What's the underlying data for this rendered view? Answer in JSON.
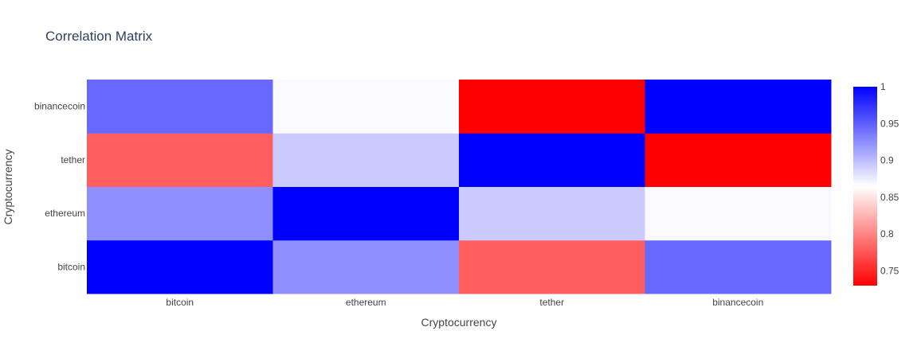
{
  "chart_data": {
    "type": "heatmap",
    "title": "Correlation Matrix",
    "xlabel": "Cryptocurrency",
    "ylabel": "Cryptocurrency",
    "x": [
      "bitcoin",
      "ethereum",
      "tether",
      "binancecoin"
    ],
    "y": [
      "bitcoin",
      "ethereum",
      "tether",
      "binancecoin"
    ],
    "z": [
      [
        1.0,
        0.925,
        0.78,
        0.945
      ],
      [
        0.925,
        1.0,
        0.893,
        0.868
      ],
      [
        0.78,
        0.893,
        1.0,
        0.73
      ],
      [
        0.945,
        0.868,
        0.73,
        1.0
      ]
    ],
    "zlim": [
      0.73,
      1.0
    ],
    "colorscale": [
      [
        0.0,
        "#ff0000"
      ],
      [
        0.5,
        "#ffffff"
      ],
      [
        1.0,
        "#0000ff"
      ]
    ],
    "colorbar": {
      "ticks": [
        0.75,
        0.8,
        0.85,
        0.9,
        0.95,
        1.0
      ],
      "tick_labels": [
        "0.75",
        "0.8",
        "0.85",
        "0.9",
        "0.95",
        "1"
      ]
    },
    "text_color": "#444444",
    "title_color": "#2a3f5f"
  }
}
